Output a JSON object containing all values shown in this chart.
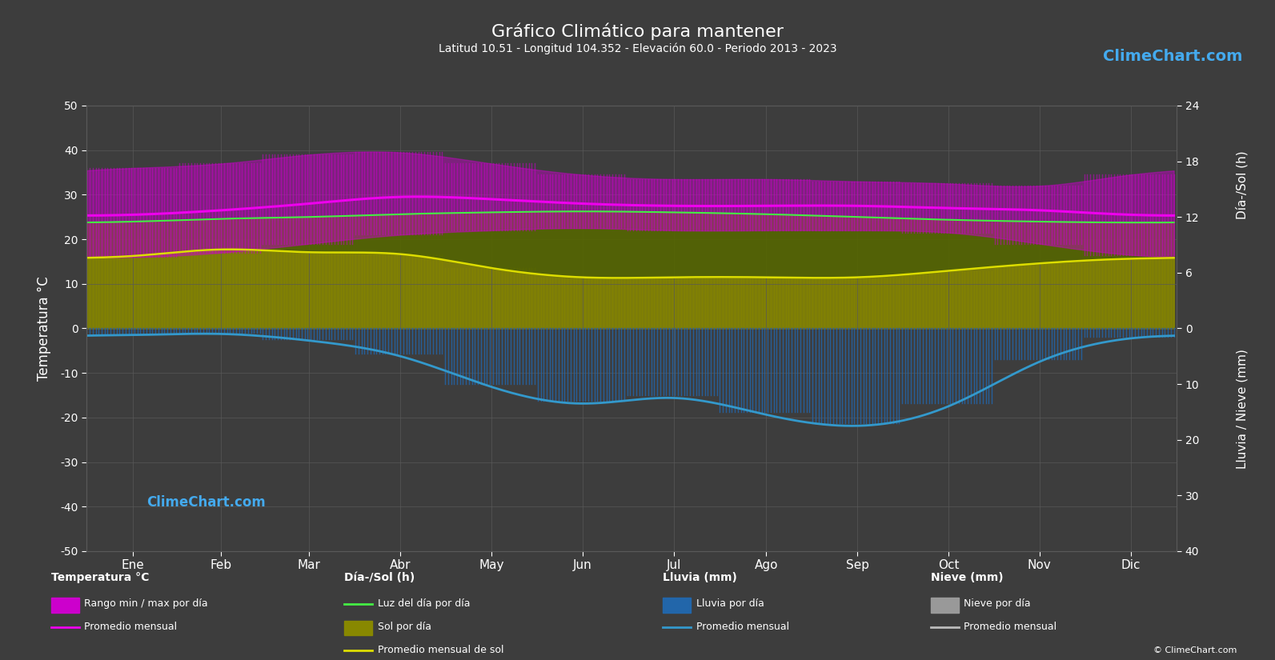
{
  "title": "Gráfico Climático para mantener",
  "subtitle": "Latitud 10.51 - Longitud 104.352 - Elevación 60.0 - Periodo 2013 - 2023",
  "months": [
    "Ene",
    "Feb",
    "Mar",
    "Abr",
    "May",
    "Jun",
    "Jul",
    "Ago",
    "Sep",
    "Oct",
    "Nov",
    "Dic"
  ],
  "bg_color": "#3d3d3d",
  "grid_color": "#595959",
  "temp_ylim": [
    -50,
    50
  ],
  "temp_avg_monthly": [
    25.5,
    26.5,
    28.0,
    29.5,
    29.0,
    28.0,
    27.5,
    27.5,
    27.5,
    27.0,
    26.5,
    25.5
  ],
  "temp_max_daily_range": [
    36.0,
    37.0,
    39.0,
    39.5,
    37.0,
    34.5,
    33.5,
    33.5,
    33.0,
    32.5,
    32.0,
    34.5
  ],
  "temp_min_daily_range": [
    16.0,
    17.0,
    19.0,
    21.0,
    22.0,
    22.5,
    22.0,
    22.0,
    22.0,
    21.5,
    19.0,
    16.5
  ],
  "sun_hours_daily": [
    7.8,
    8.5,
    8.2,
    8.0,
    6.5,
    5.5,
    5.5,
    5.5,
    5.5,
    6.2,
    7.0,
    7.5
  ],
  "daylight_hours_daily": [
    11.5,
    11.8,
    12.0,
    12.3,
    12.5,
    12.6,
    12.5,
    12.3,
    12.0,
    11.7,
    11.5,
    11.4
  ],
  "rain_daily_mm": [
    1.0,
    0.8,
    2.0,
    4.5,
    10.0,
    13.0,
    12.0,
    15.0,
    17.0,
    13.5,
    5.5,
    1.5
  ],
  "rain_monthly_avg_mm": [
    1.2,
    1.0,
    2.2,
    5.0,
    10.5,
    13.5,
    12.5,
    15.5,
    17.5,
    14.0,
    6.0,
    1.8
  ],
  "snow_daily_mm": [
    0,
    0,
    0,
    0,
    0,
    0,
    0,
    0,
    0,
    0,
    0,
    0
  ],
  "snow_monthly_avg_mm": [
    0,
    0,
    0,
    0,
    0,
    0,
    0,
    0,
    0,
    0,
    0,
    0
  ],
  "colors": {
    "temp_range_fill": "#cc00cc",
    "temp_avg_line": "#ee00ee",
    "daylight_line": "#44ee44",
    "sun_fill": "#888800",
    "daylight_fill": "#556600",
    "sun_avg_line": "#dddd00",
    "rain_fill": "#2266aa",
    "rain_avg_line": "#3399cc",
    "snow_fill": "#999999",
    "snow_avg_line": "#bbbbbb",
    "text": "#ffffff",
    "grid": "#595959"
  },
  "n_days_per_month": [
    31,
    28,
    31,
    30,
    31,
    30,
    31,
    31,
    30,
    31,
    30,
    31
  ],
  "sun_scale": 2.0833,
  "rain_scale": 1.25,
  "logo_text": "ClimeChart.com",
  "copyright_text": "© ClimeChart.com"
}
